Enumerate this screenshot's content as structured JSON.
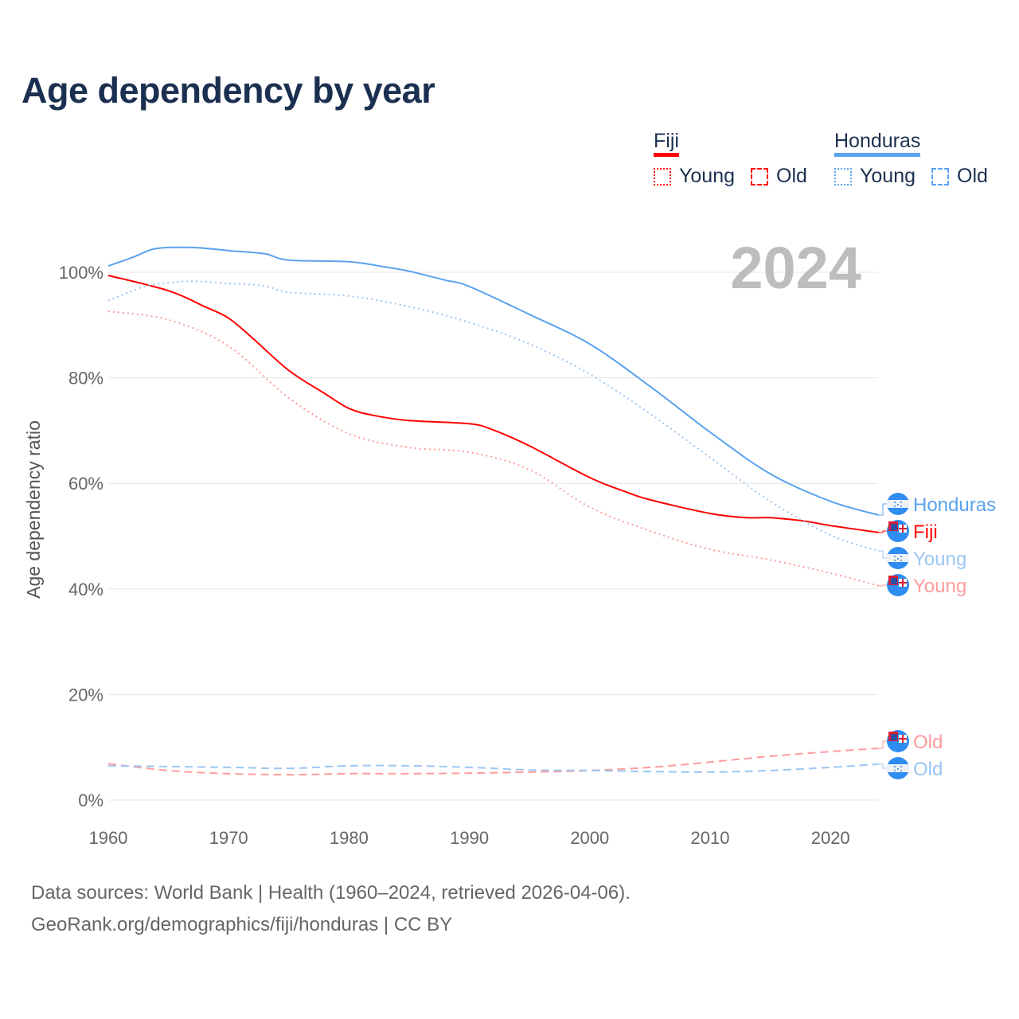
{
  "title": "Age dependency by year",
  "legend": {
    "fiji": {
      "name": "Fiji",
      "young": "Young",
      "old": "Old",
      "color": "#ff0000"
    },
    "honduras": {
      "name": "Honduras",
      "young": "Young",
      "old": "Old",
      "color": "#5ba3ee"
    }
  },
  "year_label": "2024",
  "footer": {
    "line1": "Data sources: World Bank | Health (1960–2024, retrieved 2026-04-06).",
    "line2": "GeoRank.org/demographics/fiji/honduras | CC BY"
  },
  "chart_data": {
    "type": "line",
    "title": "Age dependency by year",
    "xlabel": "",
    "ylabel": "Age dependency ratio",
    "xlim": [
      1960,
      2024
    ],
    "ylim": [
      0,
      110
    ],
    "x_ticks": [
      "1960",
      "1970",
      "1980",
      "1990",
      "2000",
      "2010",
      "2020"
    ],
    "y_ticks": [
      "0%",
      "20%",
      "40%",
      "60%",
      "80%",
      "100%"
    ],
    "grid": true,
    "legend_position": "top-right",
    "series": [
      {
        "name": "Honduras",
        "end_label": "Honduras",
        "color": "#5ba3ee",
        "dash": "solid",
        "x": [
          1960,
          1962,
          1964,
          1967,
          1970,
          1973,
          1975,
          1980,
          1983,
          1985,
          1988,
          1990,
          1995,
          2000,
          2005,
          2010,
          2015,
          2020,
          2024
        ],
        "values": [
          101.2,
          102.8,
          104.5,
          104.7,
          104.1,
          103.5,
          102.3,
          102,
          101,
          100.2,
          98.5,
          97.3,
          92,
          86.4,
          78.4,
          69.7,
          61.8,
          56.6,
          54
        ]
      },
      {
        "name": "Fiji",
        "end_label": "Fiji",
        "color": "#ff0000",
        "dash": "solid",
        "x": [
          1960,
          1965,
          1968,
          1970,
          1972,
          1975,
          1978,
          1980,
          1982,
          1985,
          1990,
          1992,
          1995,
          2000,
          2003,
          2005,
          2010,
          2013,
          2015,
          2018,
          2020,
          2024
        ],
        "values": [
          99.4,
          96.5,
          93.5,
          91.3,
          87.5,
          81.4,
          77,
          74.2,
          72.9,
          71.9,
          71.3,
          70.1,
          67.1,
          61.1,
          58.4,
          56.9,
          54.3,
          53.5,
          53.5,
          52.8,
          52,
          50.7
        ]
      },
      {
        "name": "Honduras Young",
        "end_label": "Young",
        "color": "#9cc6f2",
        "dash": "dotted",
        "x": [
          1960,
          1963,
          1965,
          1967,
          1970,
          1973,
          1975,
          1980,
          1985,
          1990,
          1995,
          2000,
          2005,
          2010,
          2015,
          2020,
          2024
        ],
        "values": [
          94.6,
          97.3,
          98,
          98.3,
          97.9,
          97.4,
          96.2,
          95.5,
          93.5,
          90.5,
          86.4,
          80.7,
          73.2,
          64.9,
          56.6,
          50.2,
          47.2
        ]
      },
      {
        "name": "Fiji Young",
        "end_label": "Young",
        "color": "#ff9c9c",
        "dash": "dotted",
        "x": [
          1960,
          1965,
          1970,
          1975,
          1980,
          1985,
          1990,
          1995,
          2000,
          2005,
          2010,
          2015,
          2020,
          2024
        ],
        "values": [
          92.6,
          91,
          86,
          76.2,
          69.4,
          66.8,
          65.9,
          62.6,
          55.5,
          51,
          47.5,
          45.5,
          43,
          40.6
        ]
      },
      {
        "name": "Fiji Old",
        "end_label": "Old",
        "color": "#ff9c9c",
        "dash": "dashed",
        "x": [
          1960,
          1965,
          1970,
          1975,
          1980,
          1985,
          1990,
          1995,
          2000,
          2005,
          2010,
          2015,
          2020,
          2024
        ],
        "values": [
          6.9,
          5.6,
          5,
          4.8,
          5,
          5,
          5.1,
          5.3,
          5.6,
          6.2,
          7.2,
          8.3,
          9.2,
          9.8
        ]
      },
      {
        "name": "Honduras Old",
        "end_label": "Old",
        "color": "#9cc6f2",
        "dash": "dashed",
        "x": [
          1960,
          1970,
          1975,
          1980,
          1985,
          1990,
          1995,
          2000,
          2005,
          2010,
          2015,
          2020,
          2024
        ],
        "values": [
          6.5,
          6.2,
          6,
          6.5,
          6.5,
          6.2,
          5.7,
          5.6,
          5.4,
          5.3,
          5.6,
          6.2,
          6.8
        ]
      }
    ]
  }
}
